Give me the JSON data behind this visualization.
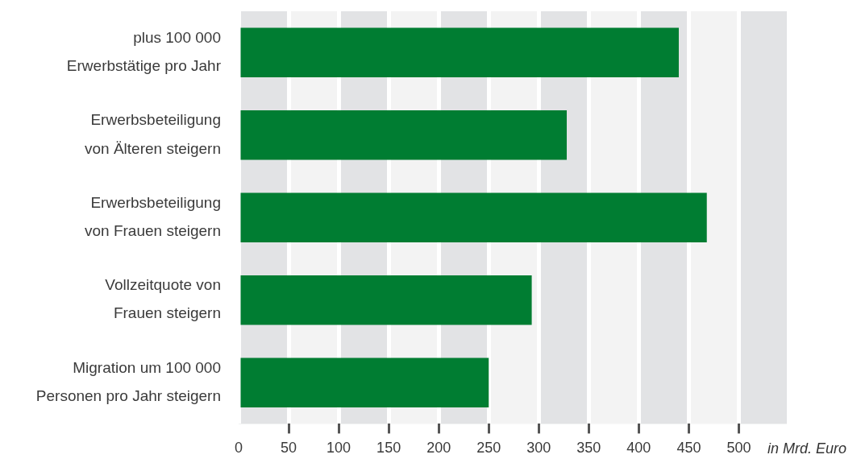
{
  "chart_data": {
    "type": "bar",
    "orientation": "horizontal",
    "xlabel": "in Mrd. Euro",
    "categories": [
      "plus 100 000\nErwerbstätige pro Jahr",
      "Erwerbsbeteiligung\nvon Älteren steigern",
      "Erwerbsbeteiligung\nvon Frauen steigern",
      "Vollzeitquote von\nFrauen steigern",
      "Migration um 100 000\nPersonen pro Jahr steigern"
    ],
    "values": [
      440,
      328,
      468,
      293,
      250
    ],
    "color": "#007d32",
    "xlim": [
      0,
      548
    ],
    "xticks": [
      0,
      50,
      100,
      150,
      200,
      250,
      300,
      350,
      400,
      450,
      500
    ],
    "grid": "x",
    "legend": false
  }
}
